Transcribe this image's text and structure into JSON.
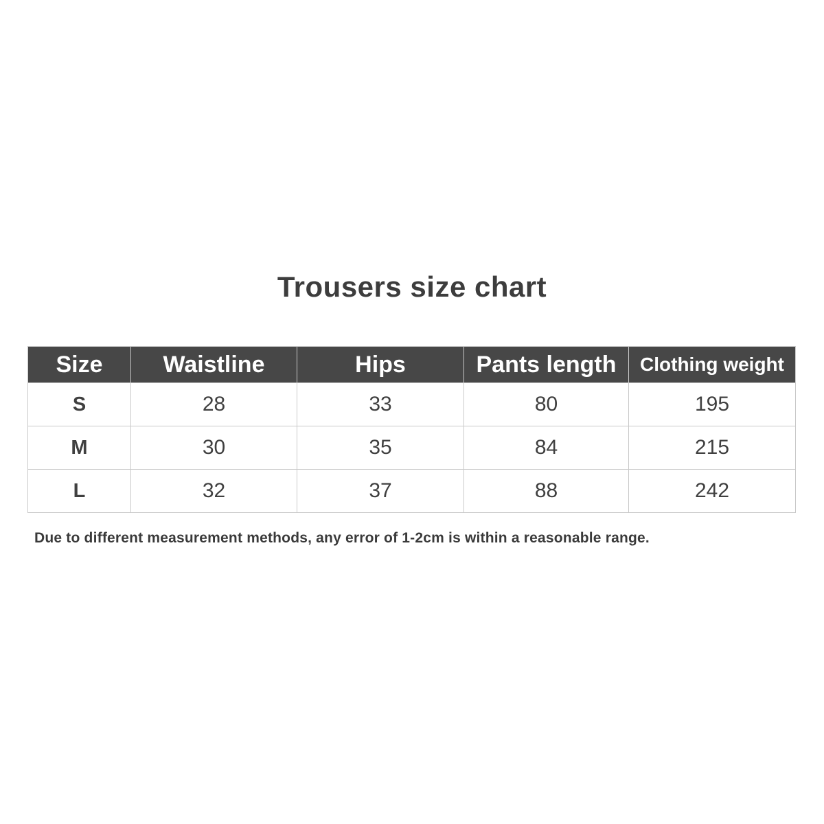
{
  "page": {
    "title": "Trousers size chart",
    "note": "Due to different measurement methods, any error of 1-2cm is within a reasonable range."
  },
  "colors": {
    "header_background": "#474747",
    "header_text": "#ffffff",
    "body_text": "#404040",
    "grid_border": "#c9c9c9",
    "page_background": "#ffffff"
  },
  "table": {
    "headers": [
      {
        "label": "Size"
      },
      {
        "label": "Waistline"
      },
      {
        "label": "Hips"
      },
      {
        "label": "Pants length"
      },
      {
        "label": "Clothing weight"
      }
    ],
    "rows": [
      {
        "cells": [
          "S",
          "28",
          "33",
          "80",
          "195"
        ]
      },
      {
        "cells": [
          "M",
          "30",
          "35",
          "84",
          "215"
        ]
      },
      {
        "cells": [
          "L",
          "32",
          "37",
          "88",
          "242"
        ]
      }
    ]
  },
  "chart_data": {
    "type": "table",
    "title": "Trousers size chart",
    "columns": [
      "Size",
      "Waistline",
      "Hips",
      "Pants length",
      "Clothing weight"
    ],
    "rows": [
      [
        "S",
        28,
        33,
        80,
        195
      ],
      [
        "M",
        30,
        35,
        84,
        215
      ],
      [
        "L",
        32,
        37,
        88,
        242
      ]
    ],
    "note": "Due to different measurement methods, any error of 1-2cm is within a reasonable range."
  }
}
